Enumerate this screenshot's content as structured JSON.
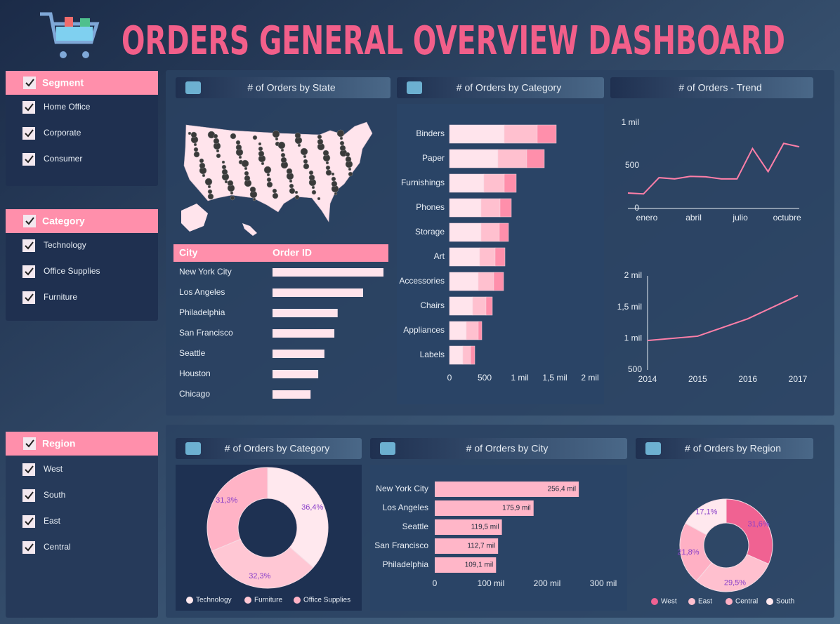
{
  "title": "ORDERS GENERAL OVERVIEW DASHBOARD",
  "slicers": [
    {
      "title": "Segment",
      "items": [
        "Home Office",
        "Corporate",
        "Consumer"
      ]
    },
    {
      "title": "Category",
      "items": [
        "Technology",
        "Office Supplies",
        "Furniture"
      ]
    },
    {
      "title": "Region",
      "items": [
        "West",
        "South",
        "East",
        "Central"
      ]
    }
  ],
  "chart_data": [
    {
      "type": "map",
      "title": "# of Orders by State"
    },
    {
      "type": "table-bar",
      "columns": [
        "City",
        "Order ID"
      ],
      "categories": [
        "New York City",
        "Los Angeles",
        "Philadelphia",
        "San Francisco",
        "Seattle",
        "Houston",
        "Chicago"
      ],
      "values": [
        915,
        747,
        537,
        510,
        428,
        377,
        314
      ],
      "color": "#ffe4ec"
    },
    {
      "type": "stacked-hbar",
      "title": "# of Orders by Category",
      "categories": [
        "Binders",
        "Paper",
        "Furnishings",
        "Phones",
        "Storage",
        "Art",
        "Accessories",
        "Chairs",
        "Appliances",
        "Labels"
      ],
      "series": [
        {
          "color": "#ffe4ec",
          "values": [
            780,
            690,
            490,
            450,
            450,
            430,
            410,
            330,
            240,
            190
          ]
        },
        {
          "color": "#ffc0cf",
          "values": [
            470,
            410,
            290,
            270,
            260,
            220,
            220,
            190,
            170,
            110
          ]
        },
        {
          "color": "#ff8fab",
          "values": [
            270,
            250,
            170,
            160,
            130,
            140,
            140,
            90,
            50,
            60
          ]
        }
      ],
      "xlim": [
        0,
        2000
      ],
      "xticks": [
        0,
        500,
        {
          "value": 1000,
          "label": "1 mil"
        },
        {
          "value": 1500,
          "label": "1,5 mil"
        },
        {
          "value": 2000,
          "label": "2 mil"
        }
      ]
    },
    {
      "type": "line",
      "title": "# of Orders - Trend",
      "categories": [
        "enero",
        null,
        null,
        "abril",
        null,
        null,
        "julio",
        null,
        null,
        "octubre",
        null,
        null
      ],
      "values": [
        180,
        170,
        360,
        345,
        375,
        370,
        345,
        345,
        700,
        430,
        760,
        720
      ],
      "color": "#ff7fa8",
      "ylim": [
        0,
        1000
      ],
      "yticks": [
        0,
        500,
        {
          "value": 1000,
          "label": "1 mil"
        }
      ]
    },
    {
      "type": "line",
      "categories": [
        "2014",
        "2015",
        "2016",
        "2017"
      ],
      "values": [
        969,
        1038,
        1315,
        1687
      ],
      "color": "#ff7fa8",
      "ylim": [
        500,
        2000
      ],
      "yticks": [
        500,
        {
          "value": 1000,
          "label": "1 mil"
        },
        {
          "value": 1500,
          "label": "1,5 mil"
        },
        {
          "value": 2000,
          "label": "2 mil"
        }
      ]
    },
    {
      "type": "donut",
      "title": "# of Orders by Category",
      "categories": [
        "Technology",
        "Furniture",
        "Office Supplies"
      ],
      "values": [
        36.4,
        32.3,
        31.3
      ],
      "value_labels": [
        "36,4%",
        "32,3%",
        "31,3%"
      ],
      "colors": [
        "#ffe8ee",
        "#ffc7d4",
        "#ffb3c6"
      ]
    },
    {
      "type": "hbar",
      "title": "# of Orders by City",
      "categories": [
        "New York City",
        "Los Angeles",
        "Seattle",
        "San Francisco",
        "Philadelphia"
      ],
      "values": [
        256400,
        175900,
        119500,
        112700,
        109100
      ],
      "value_labels": [
        "256,4 mil",
        "175,9 mil",
        "119,5 mil",
        "112,7 mil",
        "109,1 mil"
      ],
      "color": "#ffb6c8",
      "xlim": [
        0,
        300000
      ],
      "xticks": [
        0,
        {
          "value": 100000,
          "label": "100 mil"
        },
        {
          "value": 200000,
          "label": "200 mil"
        },
        {
          "value": 300000,
          "label": "300 mil"
        }
      ]
    },
    {
      "type": "donut",
      "title": "# of Orders by Region",
      "categories": [
        "West",
        "East",
        "Central",
        "South"
      ],
      "values": [
        31.6,
        29.5,
        21.8,
        17.1
      ],
      "value_labels": [
        "31,6%",
        "29,5%",
        "21,8%",
        "17,1%"
      ],
      "colors": [
        "#f06292",
        "#ffc0cf",
        "#ffb0c4",
        "#ffe8ee"
      ]
    }
  ]
}
